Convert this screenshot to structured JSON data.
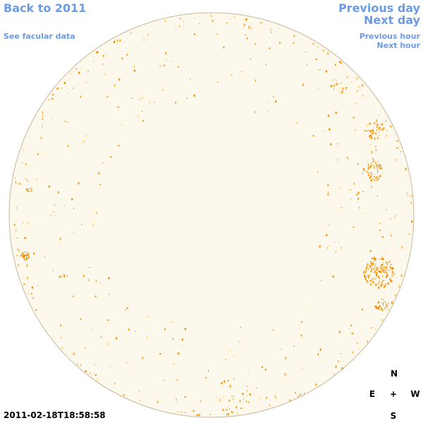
{
  "header": {
    "back_link": "Back to 2011",
    "facular_link": "See facular data",
    "previous_day": "Previous day",
    "next_day": "Next day",
    "previous_hour": "Previous hour",
    "next_hour": "Next hour"
  },
  "timestamp": "2011-02-18T18:58:58",
  "compass": {
    "north": "N",
    "east": "E",
    "center": "+",
    "west": "W",
    "south": "S"
  }
}
